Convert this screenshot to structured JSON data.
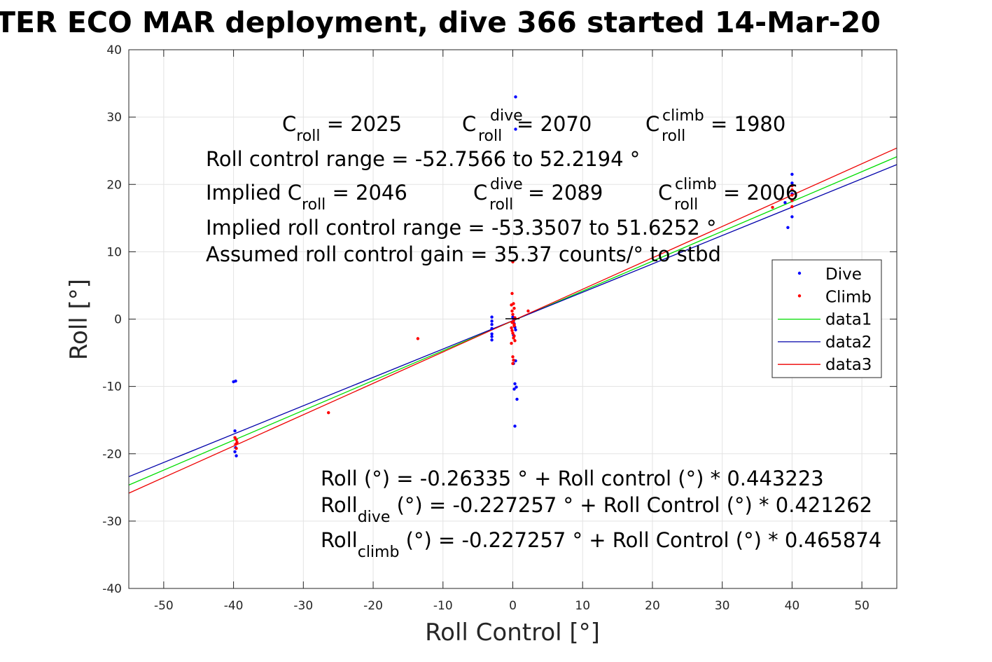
{
  "chart_data": {
    "type": "scatter",
    "title": "TER ECO MAR deployment, dive 366 started 14-Mar-20",
    "xlabel": "Roll Control [°]",
    "ylabel": "Roll [°]",
    "xlim": [
      -55,
      55
    ],
    "ylim": [
      -40,
      40
    ],
    "xticks": [
      -50,
      -40,
      -30,
      -20,
      -10,
      0,
      10,
      20,
      30,
      40,
      50
    ],
    "yticks": [
      -40,
      -30,
      -20,
      -10,
      0,
      10,
      20,
      30,
      40
    ],
    "grid": true,
    "legend": {
      "placement": "right",
      "entries": [
        {
          "label": "Dive",
          "color": "#0000ff",
          "kind": "dot"
        },
        {
          "label": "Climb",
          "color": "#ff0000",
          "kind": "dot"
        },
        {
          "label": "data1",
          "color": "#00dd00",
          "kind": "line"
        },
        {
          "label": "data2",
          "color": "#0000aa",
          "kind": "line"
        },
        {
          "label": "data3",
          "color": "#ee0000",
          "kind": "line"
        }
      ]
    },
    "series": [
      {
        "name": "Dive",
        "kind": "scatter",
        "color": "#0000ff",
        "x": [
          -40,
          -39.7,
          -39.8,
          -39.7,
          -39.8,
          -39.6,
          0.4,
          0.4,
          -3,
          -3,
          -3,
          -3,
          -3,
          -3,
          -3,
          0,
          0.1,
          0.2,
          0.3,
          0.4,
          0.1,
          0.3,
          0.5,
          0.2,
          0.6,
          0,
          0.3,
          0.4,
          0.1,
          40,
          40,
          40,
          40,
          40,
          39.4,
          39.0
        ],
        "y": [
          -9.3,
          -9.2,
          -16.6,
          -19.1,
          -19.7,
          -20.3,
          33,
          28.2,
          0.3,
          -0.3,
          -0.8,
          -1.4,
          -2.2,
          -2.6,
          -3.1,
          0.3,
          -0.2,
          -0.7,
          -1.2,
          -1.6,
          -6.6,
          -9.6,
          -10.1,
          -10.4,
          -11.9,
          -0.4,
          -15.9,
          -6.2,
          -2.4,
          21.5,
          20.2,
          18.6,
          17.6,
          15.2,
          13.6,
          17.3
        ]
      },
      {
        "name": "Climb",
        "kind": "scatter",
        "color": "#ff0000",
        "x": [
          -39.8,
          -39.6,
          -39.5,
          -39.7,
          -39.6,
          -26.4,
          -13.6,
          2.2,
          0,
          -0.1,
          0.1,
          -0.2,
          0.2,
          -0.1,
          0,
          0.3,
          0.1,
          0.2,
          -0.2,
          -0.1,
          0,
          0.2,
          0.1,
          0.3,
          -0.2,
          0,
          0.1,
          0,
          -0.1,
          0.2,
          37.2,
          40,
          40,
          40,
          40,
          40
        ],
        "y": [
          -17.6,
          -17.9,
          -18.3,
          -18.6,
          -19.2,
          -13.9,
          -2.9,
          1.2,
          8.5,
          3.8,
          2.3,
          2.1,
          1.6,
          1.2,
          0.7,
          0.2,
          -0.3,
          -0.8,
          -1.3,
          -1.7,
          -2.1,
          -2.5,
          -2.8,
          -3.2,
          -3.6,
          -5.6,
          -6.1,
          -6.6,
          -0.5,
          -1.0,
          16.6,
          19.8,
          19.2,
          18.4,
          17.6,
          16.7
        ]
      },
      {
        "name": "data1",
        "kind": "line",
        "color": "#00dd00",
        "x": [
          -55,
          55
        ],
        "y": [
          -24.64,
          24.11
        ]
      },
      {
        "name": "data2",
        "kind": "line",
        "color": "#0000aa",
        "x": [
          -55,
          55
        ],
        "y": [
          -23.4,
          22.94
        ]
      },
      {
        "name": "data3",
        "kind": "line",
        "color": "#ee0000",
        "x": [
          -55,
          55
        ],
        "y": [
          -25.85,
          25.4
        ]
      }
    ],
    "annotations": {
      "croll": {
        "name": "C",
        "sub": "roll",
        "value": " = 2025"
      },
      "croll_dive": {
        "name": "C",
        "sup": "dive",
        "sub": "roll",
        "value": " = 2070"
      },
      "croll_climb": {
        "name": "C",
        "sup": "climb",
        "sub": "roll",
        "value": " = 1980"
      },
      "range": "Roll control range = -52.7566 to 52.2194 °",
      "implied_prefix": "Implied C",
      "implied_sub": "roll",
      "implied_value": " = 2046",
      "implied_dive": {
        "name": "C",
        "sup": "dive",
        "sub": "roll",
        "value": " = 2089"
      },
      "implied_climb": {
        "name": "C",
        "sup": "climb",
        "sub": "roll",
        "value": " = 2006"
      },
      "implied_range": "Implied roll control range = -53.3507 to 51.6252 °",
      "gain": "Assumed roll control gain = 35.37 counts/° to stbd",
      "fit_all": "Roll (°) = -0.26335 ° + Roll control (°) * 0.443223",
      "fit_dive_name": "Roll",
      "fit_dive_sub": "dive",
      "fit_dive_rest": " (°) = -0.227257 ° + Roll Control (°) * 0.421262",
      "fit_climb_name": "Roll",
      "fit_climb_sub": "climb",
      "fit_climb_rest": " (°) = -0.227257 ° + Roll Control (°) * 0.465874"
    }
  }
}
